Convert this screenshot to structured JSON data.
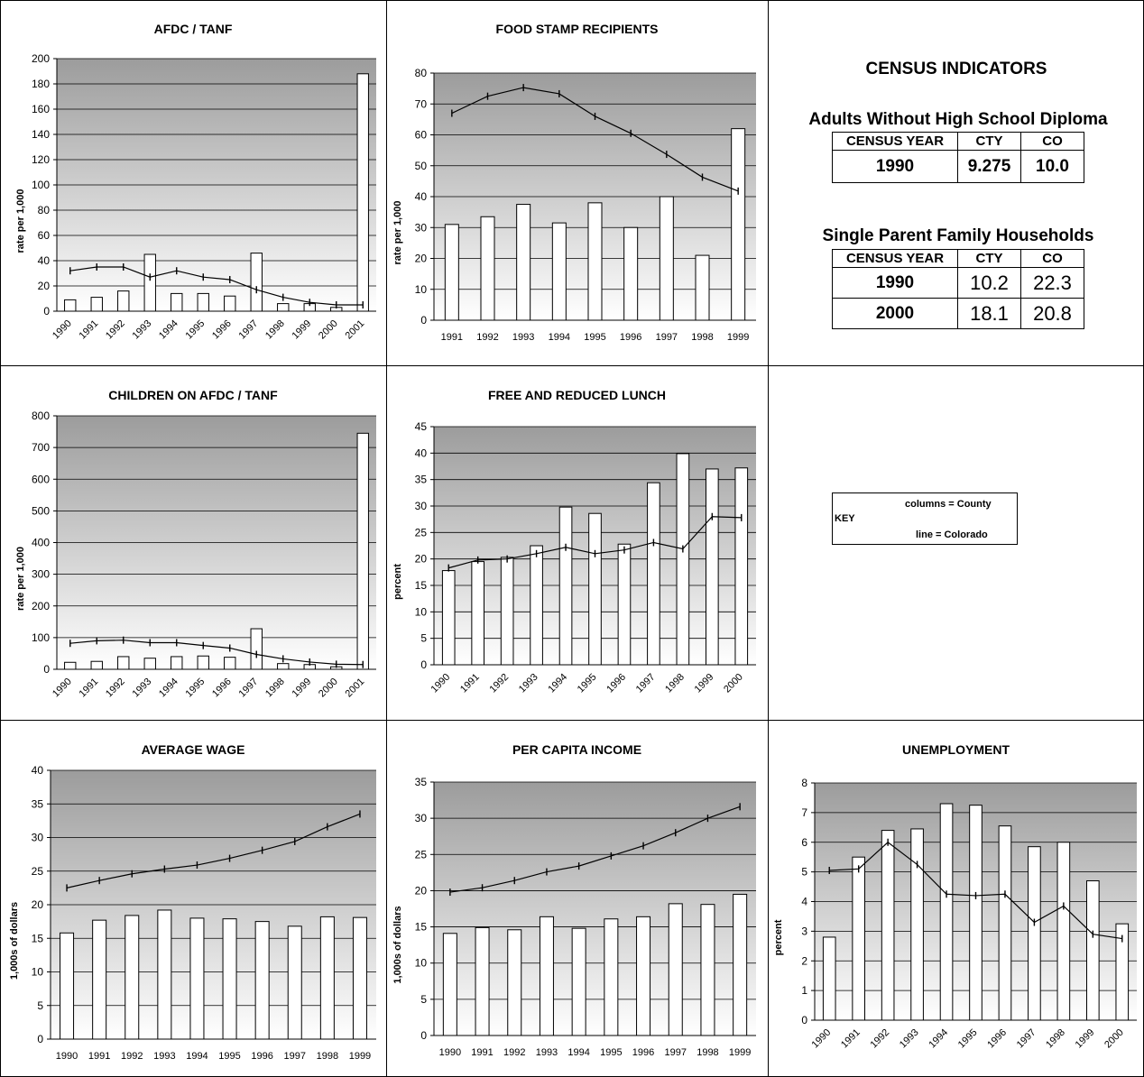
{
  "colors": {
    "bar_fill": "#ffffff",
    "bar_stroke": "#000000",
    "line_stroke": "#000000",
    "grid": "#000000",
    "plot_gradient_top": "#9c9c9c",
    "plot_gradient_bottom": "#ffffff"
  },
  "census": {
    "title": "CENSUS INDICATORS",
    "tables": [
      {
        "title": "Adults Without High School Diploma",
        "headers": [
          "CENSUS YEAR",
          "CTY",
          "CO"
        ],
        "rows": [
          [
            "1990",
            "9.275",
            "10.0"
          ]
        ]
      },
      {
        "title": "Single Parent Family Households",
        "headers": [
          "CENSUS YEAR",
          "CTY",
          "CO"
        ],
        "rows": [
          [
            "1990",
            "10.2",
            "22.3"
          ],
          [
            "2000",
            "18.1",
            "20.8"
          ]
        ]
      }
    ]
  },
  "key": {
    "label": "KEY",
    "columns": "columns = County",
    "line": "line = Colorado"
  },
  "chart_data": [
    {
      "type": "bar",
      "title": "AFDC / TANF",
      "ylabel": "rate per 1,000",
      "ylim": [
        0,
        200
      ],
      "ystep": 20,
      "rotate_x": true,
      "grid": true,
      "categories": [
        "1990",
        "1991",
        "1992",
        "1993",
        "1994",
        "1995",
        "1996",
        "1997",
        "1998",
        "1999",
        "2000",
        "2001"
      ],
      "series": [
        {
          "name": "County",
          "kind": "bar",
          "values": [
            9,
            11,
            16,
            45,
            14,
            14,
            12,
            46,
            6,
            6,
            3,
            188
          ]
        },
        {
          "name": "Colorado",
          "kind": "line",
          "values": [
            32,
            35,
            35,
            27,
            32,
            27,
            25,
            17,
            11,
            7,
            5,
            5
          ]
        }
      ]
    },
    {
      "type": "bar",
      "title": "FOOD STAMP RECIPIENTS",
      "ylabel": "rate per 1,000",
      "ylim": [
        0,
        80
      ],
      "ystep": 10,
      "rotate_x": false,
      "grid": true,
      "categories": [
        "1991",
        "1992",
        "1993",
        "1994",
        "1995",
        "1996",
        "1997",
        "1998",
        "1999"
      ],
      "series": [
        {
          "name": "County",
          "kind": "bar",
          "values": [
            31,
            33.5,
            37.5,
            31.5,
            38,
            30,
            40,
            21,
            62
          ]
        },
        {
          "name": "Colorado",
          "kind": "line",
          "values": [
            67,
            72.5,
            75.3,
            73.3,
            66,
            60.5,
            53.7,
            46.3,
            41.8
          ]
        }
      ]
    },
    {
      "type": "bar",
      "title": "CHILDREN ON AFDC / TANF",
      "ylabel": "rate per 1,000",
      "ylim": [
        0,
        800
      ],
      "ystep": 100,
      "rotate_x": true,
      "grid": true,
      "categories": [
        "1990",
        "1991",
        "1992",
        "1993",
        "1994",
        "1995",
        "1996",
        "1997",
        "1998",
        "1999",
        "2000",
        "2001"
      ],
      "series": [
        {
          "name": "County",
          "kind": "bar",
          "values": [
            22,
            25,
            40,
            35,
            40,
            42,
            38,
            128,
            18,
            15,
            8,
            745
          ]
        },
        {
          "name": "Colorado",
          "kind": "line",
          "values": [
            82,
            90,
            92,
            84,
            84,
            75,
            67,
            47,
            33,
            23,
            16,
            15
          ]
        }
      ]
    },
    {
      "type": "bar",
      "title": "FREE AND REDUCED LUNCH",
      "ylabel": "percent",
      "ylim": [
        0,
        45
      ],
      "ystep": 5,
      "rotate_x": true,
      "grid": true,
      "categories": [
        "1990",
        "1991",
        "1992",
        "1993",
        "1994",
        "1995",
        "1996",
        "1997",
        "1998",
        "1999",
        "2000"
      ],
      "series": [
        {
          "name": "County",
          "kind": "bar",
          "values": [
            17.8,
            19.5,
            20.3,
            22.5,
            29.8,
            28.6,
            22.8,
            34.4,
            39.9,
            37.0,
            37.2
          ]
        },
        {
          "name": "Colorado",
          "kind": "line",
          "values": [
            18.3,
            19.8,
            20.0,
            21.0,
            22.2,
            21.0,
            21.7,
            23.1,
            21.9,
            28.0,
            27.8
          ]
        }
      ]
    },
    {
      "type": "bar",
      "title": "AVERAGE WAGE",
      "ylabel": "1,000s of dollars",
      "ylim": [
        0,
        40
      ],
      "ystep": 5,
      "rotate_x": false,
      "grid": true,
      "categories": [
        "1990",
        "1991",
        "1992",
        "1993",
        "1994",
        "1995",
        "1996",
        "1997",
        "1998",
        "1999"
      ],
      "series": [
        {
          "name": "County",
          "kind": "bar",
          "values": [
            15.8,
            17.7,
            18.4,
            19.2,
            18.0,
            17.9,
            17.5,
            16.8,
            18.2,
            18.1
          ]
        },
        {
          "name": "Colorado",
          "kind": "line",
          "values": [
            22.5,
            23.6,
            24.6,
            25.3,
            25.9,
            26.9,
            28.1,
            29.4,
            31.6,
            33.5
          ]
        }
      ]
    },
    {
      "type": "bar",
      "title": "PER CAPITA INCOME",
      "ylabel": "1,000s of dollars",
      "ylim": [
        0,
        35
      ],
      "ystep": 5,
      "rotate_x": false,
      "grid": true,
      "categories": [
        "1990",
        "1991",
        "1992",
        "1993",
        "1994",
        "1995",
        "1996",
        "1997",
        "1998",
        "1999"
      ],
      "series": [
        {
          "name": "County",
          "kind": "bar",
          "values": [
            14.1,
            14.9,
            14.6,
            16.4,
            14.8,
            16.1,
            16.4,
            18.2,
            18.1,
            19.5
          ]
        },
        {
          "name": "Colorado",
          "kind": "line",
          "values": [
            19.8,
            20.4,
            21.4,
            22.6,
            23.4,
            24.8,
            26.2,
            28.0,
            30.0,
            31.6
          ]
        }
      ]
    },
    {
      "type": "bar",
      "title": "UNEMPLOYMENT",
      "ylabel": "percent",
      "ylim": [
        0,
        8
      ],
      "ystep": 1,
      "rotate_x": true,
      "grid": true,
      "categories": [
        "1990",
        "1991",
        "1992",
        "1993",
        "1994",
        "1995",
        "1996",
        "1997",
        "1998",
        "1999",
        "2000"
      ],
      "series": [
        {
          "name": "County",
          "kind": "bar",
          "values": [
            2.8,
            5.5,
            6.4,
            6.45,
            7.3,
            7.25,
            6.55,
            5.85,
            6.0,
            4.7,
            3.25
          ]
        },
        {
          "name": "Colorado",
          "kind": "line",
          "values": [
            5.05,
            5.1,
            6.0,
            5.25,
            4.25,
            4.2,
            4.25,
            3.3,
            3.85,
            2.9,
            2.75
          ]
        }
      ]
    }
  ]
}
